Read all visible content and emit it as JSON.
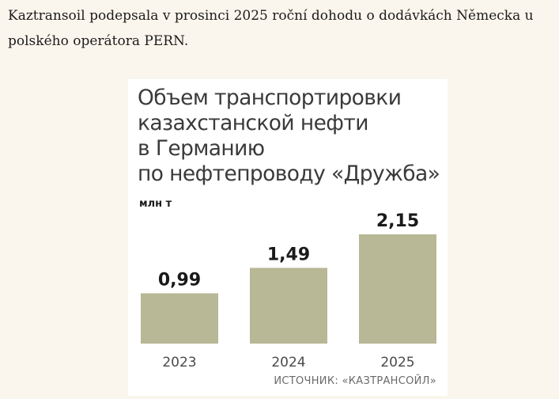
{
  "caption": "Kaztransoil podepsala v prosinci 2025 roční dohodu o dodávkách Německa u polského operátora PERN.",
  "chart_data": {
    "type": "bar",
    "title_lines": [
      "Объем транспортировки",
      "казахстанской нефти",
      "в Германию",
      "по нефтепроводу «Дружба»"
    ],
    "unit": "млн т",
    "categories": [
      "2023",
      "2024",
      "2025"
    ],
    "values": [
      0.99,
      1.49,
      2.15
    ],
    "value_labels": [
      "0,99",
      "1,49",
      "2,15"
    ],
    "bar_color": "#b8b796",
    "ylim": [
      0,
      2.15
    ],
    "grid": false,
    "source": "ИСТОЧНИК: «КАЗТРАНСОЙЛ»"
  }
}
